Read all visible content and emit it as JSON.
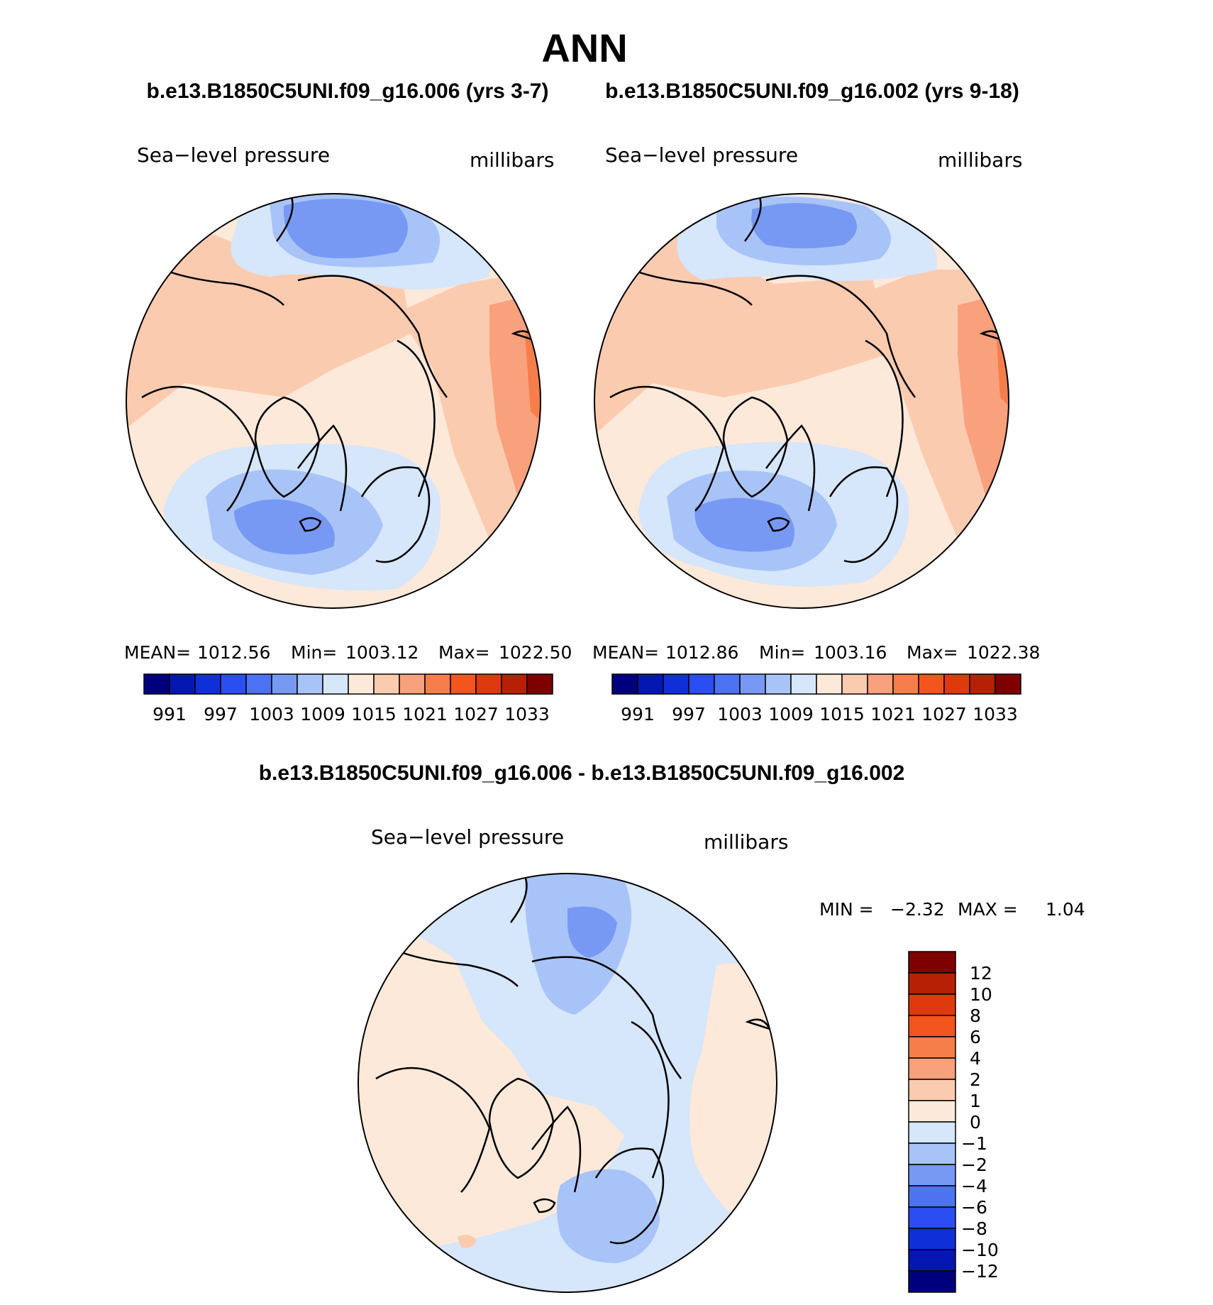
{
  "chart_data": [
    {
      "type": "heatmap",
      "projection": "polar-stereographic-north",
      "figure_title": "ANN",
      "title": "b.e13.B1850C5UNI.f09_g16.006 (yrs 3-7)",
      "left_label": "Sea−level pressure",
      "right_label": "millibars",
      "stats": {
        "mean_label": "MEAN=",
        "mean": "1012.56",
        "min_label": "Min=",
        "min": "1003.12",
        "max_label": "Max=",
        "max": "1022.50"
      },
      "colorbar": {
        "orientation": "horizontal",
        "colors": [
          "#00007f",
          "#0517b2",
          "#0f30d9",
          "#2a4ef2",
          "#4d72f2",
          "#7799f3",
          "#a8c3f7",
          "#d6e6fb",
          "#fde9d9",
          "#fbcbb0",
          "#f9a07c",
          "#f67e4b",
          "#f4541e",
          "#de3a0d",
          "#b82005",
          "#7f0000"
        ],
        "tick_labels": [
          "991",
          "997",
          "1003",
          "1009",
          "1015",
          "1021",
          "1027",
          "1033"
        ]
      }
    },
    {
      "type": "heatmap",
      "projection": "polar-stereographic-north",
      "title": "b.e13.B1850C5UNI.f09_g16.002 (yrs 9-18)",
      "left_label": "Sea−level pressure",
      "right_label": "millibars",
      "stats": {
        "mean_label": "MEAN=",
        "mean": "1012.86",
        "min_label": "Min=",
        "min": "1003.16",
        "max_label": "Max=",
        "max": "1022.38"
      },
      "colorbar": {
        "orientation": "horizontal",
        "colors": [
          "#00007f",
          "#0517b2",
          "#0f30d9",
          "#2a4ef2",
          "#4d72f2",
          "#7799f3",
          "#a8c3f7",
          "#d6e6fb",
          "#fde9d9",
          "#fbcbb0",
          "#f9a07c",
          "#f67e4b",
          "#f4541e",
          "#de3a0d",
          "#b82005",
          "#7f0000"
        ],
        "tick_labels": [
          "991",
          "997",
          "1003",
          "1009",
          "1015",
          "1021",
          "1027",
          "1033"
        ]
      }
    },
    {
      "type": "heatmap",
      "projection": "polar-stereographic-north",
      "title": "b.e13.B1850C5UNI.f09_g16.006 - b.e13.B1850C5UNI.f09_g16.002",
      "left_label": "Sea−level pressure",
      "right_label": "millibars",
      "stats": {
        "min_label": "MIN =",
        "min": "−2.32",
        "max_label": "MAX =",
        "max": "1.04"
      },
      "colorbar": {
        "orientation": "vertical",
        "colors": [
          "#7f0000",
          "#b82005",
          "#de3a0d",
          "#f4541e",
          "#f67e4b",
          "#f9a07c",
          "#fbcbb0",
          "#fde9d9",
          "#d6e6fb",
          "#a8c3f7",
          "#7799f3",
          "#4d72f2",
          "#2a4ef2",
          "#0f30d9",
          "#0517b2",
          "#00007f"
        ],
        "tick_labels": [
          "12",
          "10",
          "8",
          "6",
          "4",
          "2",
          "1",
          "0",
          "−1",
          "−2",
          "−4",
          "−6",
          "−8",
          "−10",
          "−12"
        ]
      }
    }
  ]
}
